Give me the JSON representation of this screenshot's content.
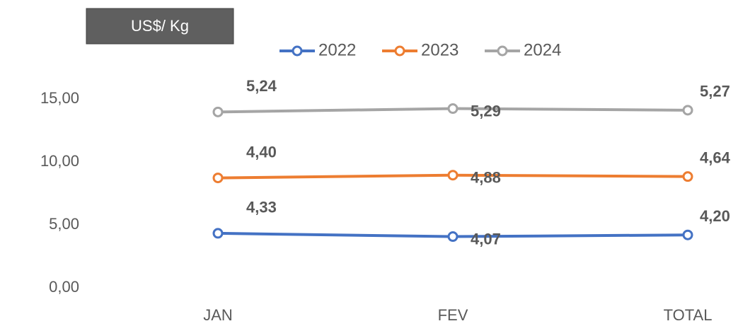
{
  "chart_data": {
    "type": "line",
    "stacked": true,
    "title": "US$/ Kg",
    "categories": [
      "JAN",
      "FEV",
      "TOTAL"
    ],
    "series": [
      {
        "name": "2022",
        "color": "#4472c4",
        "values": [
          4.33,
          4.07,
          4.2
        ],
        "value_labels": [
          "4,33",
          "4,07",
          "4,20"
        ]
      },
      {
        "name": "2023",
        "color": "#ed7d31",
        "values": [
          4.4,
          4.88,
          4.64
        ],
        "value_labels": [
          "4,40",
          "4,88",
          "4,64"
        ]
      },
      {
        "name": "2024",
        "color": "#a5a5a5",
        "values": [
          5.24,
          5.29,
          5.27
        ],
        "value_labels": [
          "5,24",
          "5,29",
          "5,27"
        ]
      }
    ],
    "ylim": [
      0,
      15
    ],
    "yticks": [
      {
        "value": 0,
        "label": "0,00"
      },
      {
        "value": 5,
        "label": "5,00"
      },
      {
        "value": 10,
        "label": "10,00"
      },
      {
        "value": 15,
        "label": "15,00"
      }
    ],
    "grid": false
  }
}
